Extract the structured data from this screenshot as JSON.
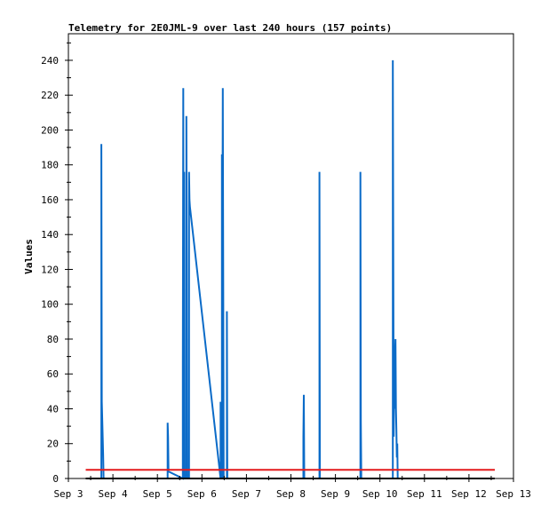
{
  "chart_data": {
    "type": "line",
    "title": "Telemetry for 2E0JML-9 over last 240 hours (157 points)",
    "ylabel": "Values",
    "xlabel": "",
    "xlim": [
      3.0,
      13.0
    ],
    "ylim": [
      0,
      255
    ],
    "x_ticks": [
      {
        "v": 3,
        "label": "Sep 3"
      },
      {
        "v": 4,
        "label": "Sep 4"
      },
      {
        "v": 5,
        "label": "Sep 5"
      },
      {
        "v": 6,
        "label": "Sep 6"
      },
      {
        "v": 7,
        "label": "Sep 7"
      },
      {
        "v": 8,
        "label": "Sep 8"
      },
      {
        "v": 9,
        "label": "Sep 9"
      },
      {
        "v": 10,
        "label": "Sep 10"
      },
      {
        "v": 11,
        "label": "Sep 11"
      },
      {
        "v": 12,
        "label": "Sep 12"
      },
      {
        "v": 13,
        "label": "Sep 13"
      }
    ],
    "y_ticks": [
      0,
      20,
      40,
      60,
      80,
      100,
      120,
      140,
      160,
      180,
      200,
      220,
      240
    ],
    "grid": false,
    "series": [
      {
        "color": "#0b6bc8",
        "points": [
          [
            3.74,
            0
          ],
          [
            3.74,
            192
          ],
          [
            3.75,
            44
          ],
          [
            3.76,
            34
          ],
          [
            3.77,
            24
          ],
          [
            3.78,
            14
          ],
          [
            3.79,
            0
          ],
          [
            5.23,
            0
          ],
          [
            5.23,
            32
          ],
          [
            5.24,
            24
          ],
          [
            5.25,
            4
          ],
          [
            5.57,
            0
          ],
          [
            5.57,
            64
          ],
          [
            5.58,
            224
          ],
          [
            5.59,
            16
          ],
          [
            5.6,
            176
          ],
          [
            5.61,
            0
          ],
          [
            5.65,
            0
          ],
          [
            5.65,
            208
          ],
          [
            5.66,
            128
          ],
          [
            5.67,
            0
          ],
          [
            5.71,
            0
          ],
          [
            5.71,
            176
          ],
          [
            5.72,
            160
          ],
          [
            5.73,
            156
          ],
          [
            6.42,
            0
          ],
          [
            6.42,
            44
          ],
          [
            6.45,
            0
          ],
          [
            6.45,
            186
          ],
          [
            6.46,
            112
          ],
          [
            6.47,
            224
          ],
          [
            6.48,
            112
          ],
          [
            6.49,
            0
          ],
          [
            6.56,
            0
          ],
          [
            6.56,
            96
          ],
          [
            6.57,
            0
          ],
          [
            8.28,
            0
          ],
          [
            8.28,
            24
          ],
          [
            8.29,
            48
          ],
          [
            8.3,
            0
          ],
          [
            8.64,
            0
          ],
          [
            8.64,
            176
          ],
          [
            8.65,
            0
          ],
          [
            9.56,
            0
          ],
          [
            9.56,
            176
          ],
          [
            9.57,
            32
          ],
          [
            9.58,
            0
          ],
          [
            10.29,
            0
          ],
          [
            10.29,
            240
          ],
          [
            10.31,
            24
          ],
          [
            10.32,
            56
          ],
          [
            10.33,
            40
          ],
          [
            10.34,
            72
          ],
          [
            10.35,
            80
          ],
          [
            10.36,
            40
          ],
          [
            10.37,
            28
          ],
          [
            10.38,
            12
          ],
          [
            10.39,
            20
          ],
          [
            10.4,
            0
          ]
        ]
      },
      {
        "color": "#e41a1c",
        "points": [
          [
            3.39,
            5
          ],
          [
            12.58,
            5
          ]
        ]
      },
      {
        "color": "#000000",
        "points": [
          [
            3.39,
            0
          ],
          [
            12.58,
            0
          ]
        ]
      }
    ]
  }
}
